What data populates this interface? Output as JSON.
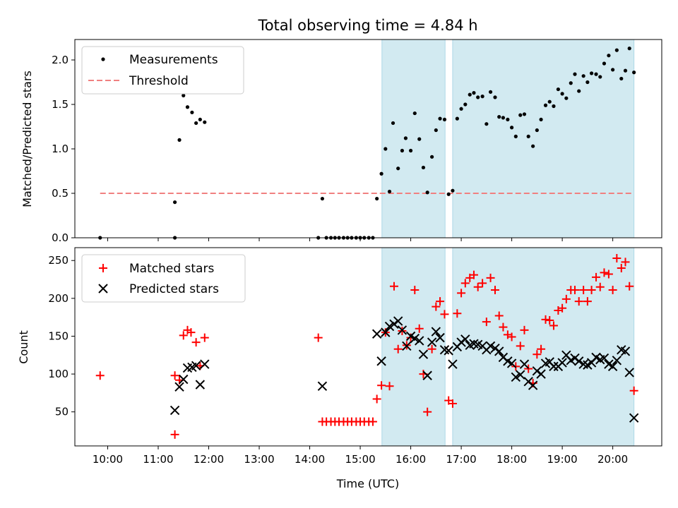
{
  "title": "Total observing time = 4.84 h",
  "xlabel": "Time (UTC)",
  "x_ticks": [
    "10:00",
    "11:00",
    "12:00",
    "13:00",
    "14:00",
    "15:00",
    "16:00",
    "17:00",
    "18:00",
    "19:00",
    "20:00"
  ],
  "colors": {
    "measurement": "#000000",
    "threshold": "#f08080",
    "matched": "#ff0000",
    "predicted": "#000000",
    "shade": "#add8e6"
  },
  "chart_data": [
    {
      "type": "scatter",
      "ylabel": "Matched/Predicted stars",
      "ylim": [
        0,
        2.23
      ],
      "yticks": [
        "0.0",
        "0.5",
        "1.0",
        "1.5",
        "2.0"
      ],
      "legend": {
        "placement": "top-left",
        "measurements_label": "Measurements",
        "threshold_label": "Threshold"
      },
      "threshold": {
        "value": 0.5,
        "x_start": 9.85,
        "x_end": 20.42
      },
      "shaded_regions": [
        [
          15.43,
          16.68
        ],
        [
          16.83,
          20.42
        ]
      ],
      "series": [
        {
          "name": "Measurements",
          "points": [
            [
              9.85,
              0.0
            ],
            [
              11.33,
              0.0
            ],
            [
              11.33,
              0.4
            ],
            [
              11.42,
              1.1
            ],
            [
              11.5,
              1.6
            ],
            [
              11.58,
              1.47
            ],
            [
              11.67,
              1.41
            ],
            [
              11.75,
              1.29
            ],
            [
              11.83,
              1.33
            ],
            [
              11.92,
              1.3
            ],
            [
              14.17,
              0.0
            ],
            [
              14.25,
              0.44
            ],
            [
              14.33,
              0.0
            ],
            [
              14.42,
              0.0
            ],
            [
              14.5,
              0.0
            ],
            [
              14.58,
              0.0
            ],
            [
              14.67,
              0.0
            ],
            [
              14.75,
              0.0
            ],
            [
              14.83,
              0.0
            ],
            [
              14.92,
              0.0
            ],
            [
              15.0,
              0.0
            ],
            [
              15.08,
              0.0
            ],
            [
              15.17,
              0.0
            ],
            [
              15.25,
              0.0
            ],
            [
              15.33,
              0.44
            ],
            [
              15.42,
              0.72
            ],
            [
              15.5,
              1.0
            ],
            [
              15.58,
              0.52
            ],
            [
              15.65,
              1.29
            ],
            [
              15.75,
              0.78
            ],
            [
              15.83,
              0.98
            ],
            [
              15.9,
              1.12
            ],
            [
              16.0,
              0.98
            ],
            [
              16.08,
              1.4
            ],
            [
              16.17,
              1.11
            ],
            [
              16.25,
              0.79
            ],
            [
              16.33,
              0.51
            ],
            [
              16.42,
              0.91
            ],
            [
              16.5,
              1.21
            ],
            [
              16.58,
              1.34
            ],
            [
              16.67,
              1.33
            ],
            [
              16.75,
              0.49
            ],
            [
              16.83,
              0.53
            ],
            [
              16.92,
              1.34
            ],
            [
              17.0,
              1.45
            ],
            [
              17.08,
              1.5
            ],
            [
              17.17,
              1.61
            ],
            [
              17.25,
              1.63
            ],
            [
              17.33,
              1.58
            ],
            [
              17.42,
              1.59
            ],
            [
              17.5,
              1.28
            ],
            [
              17.58,
              1.64
            ],
            [
              17.67,
              1.58
            ],
            [
              17.75,
              1.36
            ],
            [
              17.83,
              1.35
            ],
            [
              17.92,
              1.33
            ],
            [
              18.0,
              1.24
            ],
            [
              18.08,
              1.14
            ],
            [
              18.17,
              1.38
            ],
            [
              18.25,
              1.39
            ],
            [
              18.33,
              1.14
            ],
            [
              18.42,
              1.03
            ],
            [
              18.5,
              1.21
            ],
            [
              18.58,
              1.33
            ],
            [
              18.67,
              1.49
            ],
            [
              18.75,
              1.53
            ],
            [
              18.83,
              1.48
            ],
            [
              18.92,
              1.67
            ],
            [
              19.0,
              1.62
            ],
            [
              19.08,
              1.57
            ],
            [
              19.17,
              1.74
            ],
            [
              19.25,
              1.84
            ],
            [
              19.33,
              1.65
            ],
            [
              19.42,
              1.82
            ],
            [
              19.5,
              1.75
            ],
            [
              19.58,
              1.85
            ],
            [
              19.67,
              1.84
            ],
            [
              19.75,
              1.81
            ],
            [
              19.83,
              1.96
            ],
            [
              19.92,
              2.05
            ],
            [
              20.0,
              1.89
            ],
            [
              20.08,
              2.11
            ],
            [
              20.17,
              1.79
            ],
            [
              20.25,
              1.88
            ],
            [
              20.33,
              2.13
            ],
            [
              20.42,
              1.86
            ]
          ]
        }
      ]
    },
    {
      "type": "scatter",
      "ylabel": "Count",
      "ylim": [
        5,
        267
      ],
      "yticks": [
        "50",
        "100",
        "150",
        "200",
        "250"
      ],
      "legend": {
        "placement": "top-left",
        "matched_label": "Matched stars",
        "predicted_label": "Predicted stars"
      },
      "shaded_regions": [
        [
          15.43,
          16.68
        ],
        [
          16.83,
          20.42
        ]
      ],
      "series": [
        {
          "name": "Matched stars",
          "marker": "+",
          "points": [
            [
              9.85,
              98
            ],
            [
              11.33,
              98
            ],
            [
              11.33,
              20
            ],
            [
              11.42,
              92
            ],
            [
              11.5,
              151
            ],
            [
              11.58,
              158
            ],
            [
              11.65,
              155
            ],
            [
              11.75,
              142
            ],
            [
              11.83,
              111
            ],
            [
              11.92,
              148
            ],
            [
              14.17,
              148
            ],
            [
              14.25,
              37
            ],
            [
              14.33,
              37
            ],
            [
              14.42,
              37
            ],
            [
              14.5,
              37
            ],
            [
              14.58,
              37
            ],
            [
              14.67,
              37
            ],
            [
              14.75,
              37
            ],
            [
              14.83,
              37
            ],
            [
              14.92,
              37
            ],
            [
              15.0,
              37
            ],
            [
              15.08,
              37
            ],
            [
              15.17,
              37
            ],
            [
              15.25,
              37
            ],
            [
              15.33,
              67
            ],
            [
              15.42,
              85
            ],
            [
              15.5,
              155
            ],
            [
              15.58,
              84
            ],
            [
              15.67,
              216
            ],
            [
              15.75,
              133
            ],
            [
              15.83,
              157
            ],
            [
              15.92,
              138
            ],
            [
              16.0,
              148
            ],
            [
              16.08,
              211
            ],
            [
              16.17,
              160
            ],
            [
              16.25,
              100
            ],
            [
              16.33,
              50
            ],
            [
              16.42,
              133
            ],
            [
              16.5,
              189
            ],
            [
              16.58,
              196
            ],
            [
              16.67,
              179
            ],
            [
              16.75,
              65
            ],
            [
              16.83,
              61
            ],
            [
              16.92,
              180
            ],
            [
              17.0,
              207
            ],
            [
              17.08,
              220
            ],
            [
              17.17,
              227
            ],
            [
              17.25,
              231
            ],
            [
              17.33,
              215
            ],
            [
              17.42,
              220
            ],
            [
              17.5,
              169
            ],
            [
              17.58,
              227
            ],
            [
              17.67,
              211
            ],
            [
              17.75,
              177
            ],
            [
              17.83,
              162
            ],
            [
              17.92,
              152
            ],
            [
              18.0,
              149
            ],
            [
              18.08,
              110
            ],
            [
              18.17,
              137
            ],
            [
              18.25,
              158
            ],
            [
              18.33,
              107
            ],
            [
              18.42,
              88
            ],
            [
              18.5,
              126
            ],
            [
              18.58,
              133
            ],
            [
              18.67,
              172
            ],
            [
              18.75,
              171
            ],
            [
              18.83,
              164
            ],
            [
              18.92,
              184
            ],
            [
              19.0,
              187
            ],
            [
              19.08,
              199
            ],
            [
              19.17,
              211
            ],
            [
              19.25,
              211
            ],
            [
              19.33,
              196
            ],
            [
              19.42,
              211
            ],
            [
              19.5,
              196
            ],
            [
              19.58,
              211
            ],
            [
              19.67,
              228
            ],
            [
              19.75,
              215
            ],
            [
              19.83,
              234
            ],
            [
              19.92,
              232
            ],
            [
              20.0,
              211
            ],
            [
              20.08,
              253
            ],
            [
              20.17,
              240
            ],
            [
              20.25,
              248
            ],
            [
              20.33,
              216
            ],
            [
              20.42,
              78
            ]
          ]
        },
        {
          "name": "Predicted stars",
          "marker": "x",
          "points": [
            [
              11.33,
              52
            ],
            [
              11.42,
              83
            ],
            [
              11.5,
              93
            ],
            [
              11.58,
              108
            ],
            [
              11.67,
              109
            ],
            [
              11.75,
              111
            ],
            [
              11.83,
              86
            ],
            [
              11.92,
              113
            ],
            [
              14.25,
              84
            ],
            [
              15.33,
              153
            ],
            [
              15.42,
              117
            ],
            [
              15.5,
              155
            ],
            [
              15.58,
              163
            ],
            [
              15.67,
              166
            ],
            [
              15.75,
              170
            ],
            [
              15.83,
              158
            ],
            [
              15.92,
              137
            ],
            [
              16.0,
              150
            ],
            [
              16.08,
              147
            ],
            [
              16.17,
              144
            ],
            [
              16.25,
              126
            ],
            [
              16.33,
              98
            ],
            [
              16.42,
              142
            ],
            [
              16.5,
              156
            ],
            [
              16.58,
              148
            ],
            [
              16.67,
              132
            ],
            [
              16.75,
              131
            ],
            [
              16.83,
              113
            ],
            [
              16.92,
              136
            ],
            [
              17.0,
              142
            ],
            [
              17.08,
              146
            ],
            [
              17.17,
              138
            ],
            [
              17.25,
              140
            ],
            [
              17.33,
              139
            ],
            [
              17.42,
              137
            ],
            [
              17.5,
              132
            ],
            [
              17.58,
              137
            ],
            [
              17.67,
              134
            ],
            [
              17.75,
              130
            ],
            [
              17.83,
              122
            ],
            [
              17.92,
              117
            ],
            [
              18.0,
              114
            ],
            [
              18.08,
              96
            ],
            [
              18.17,
              99
            ],
            [
              18.25,
              113
            ],
            [
              18.33,
              90
            ],
            [
              18.42,
              85
            ],
            [
              18.5,
              104
            ],
            [
              18.58,
              100
            ],
            [
              18.67,
              114
            ],
            [
              18.75,
              116
            ],
            [
              18.83,
              110
            ],
            [
              18.92,
              110
            ],
            [
              19.0,
              115
            ],
            [
              19.08,
              125
            ],
            [
              19.17,
              118
            ],
            [
              19.25,
              121
            ],
            [
              19.33,
              117
            ],
            [
              19.42,
              113
            ],
            [
              19.5,
              112
            ],
            [
              19.58,
              115
            ],
            [
              19.67,
              122
            ],
            [
              19.75,
              119
            ],
            [
              19.83,
              121
            ],
            [
              19.92,
              113
            ],
            [
              20.0,
              110
            ],
            [
              20.08,
              118
            ],
            [
              20.17,
              132
            ],
            [
              20.25,
              130
            ],
            [
              20.33,
              102
            ],
            [
              20.42,
              42
            ]
          ]
        }
      ]
    }
  ]
}
